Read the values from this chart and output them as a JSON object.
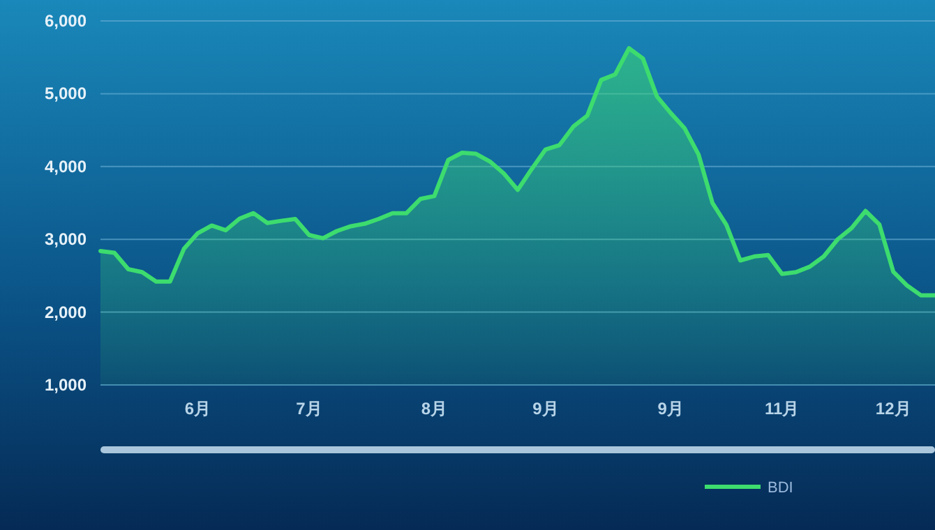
{
  "chart_data": {
    "type": "area",
    "categories": [
      null,
      null,
      null,
      null,
      null,
      null,
      null,
      "6月",
      null,
      null,
      null,
      null,
      null,
      null,
      null,
      "7月",
      null,
      null,
      null,
      null,
      null,
      null,
      null,
      null,
      "8月",
      null,
      null,
      null,
      null,
      null,
      null,
      null,
      "9月",
      null,
      null,
      null,
      null,
      null,
      null,
      null,
      null,
      "9月",
      null,
      null,
      null,
      null,
      null,
      null,
      null,
      "11月",
      null,
      null,
      null,
      null,
      null,
      null,
      null,
      "12月",
      null,
      null,
      null
    ],
    "ylim": [
      1000,
      6250
    ],
    "yticks": [
      {
        "value": 1000,
        "label": "1,000"
      },
      {
        "value": 2000,
        "label": "2,000"
      },
      {
        "value": 3000,
        "label": "3,000"
      },
      {
        "value": 4000,
        "label": "4,000"
      },
      {
        "value": 5000,
        "label": "5,000"
      },
      {
        "value": 6000,
        "label": "6,000"
      }
    ],
    "grid": "y",
    "legend": "bottom",
    "series": [
      {
        "name": "BDI",
        "color": "#3ddc6e",
        "values": [
          2840,
          2815,
          2590,
          2550,
          2420,
          2420,
          2870,
          3085,
          3190,
          3125,
          3285,
          3360,
          3225,
          3255,
          3280,
          3060,
          3015,
          3115,
          3180,
          3215,
          3280,
          3360,
          3360,
          3555,
          3595,
          4090,
          4190,
          4175,
          4070,
          3905,
          3680,
          3965,
          4235,
          4295,
          4550,
          4700,
          5190,
          5265,
          5625,
          5485,
          4965,
          4735,
          4525,
          4165,
          3500,
          3200,
          2710,
          2765,
          2785,
          2525,
          2550,
          2625,
          2765,
          3000,
          3155,
          3390,
          3205,
          2555,
          2365,
          2230,
          2230
        ]
      }
    ]
  }
}
